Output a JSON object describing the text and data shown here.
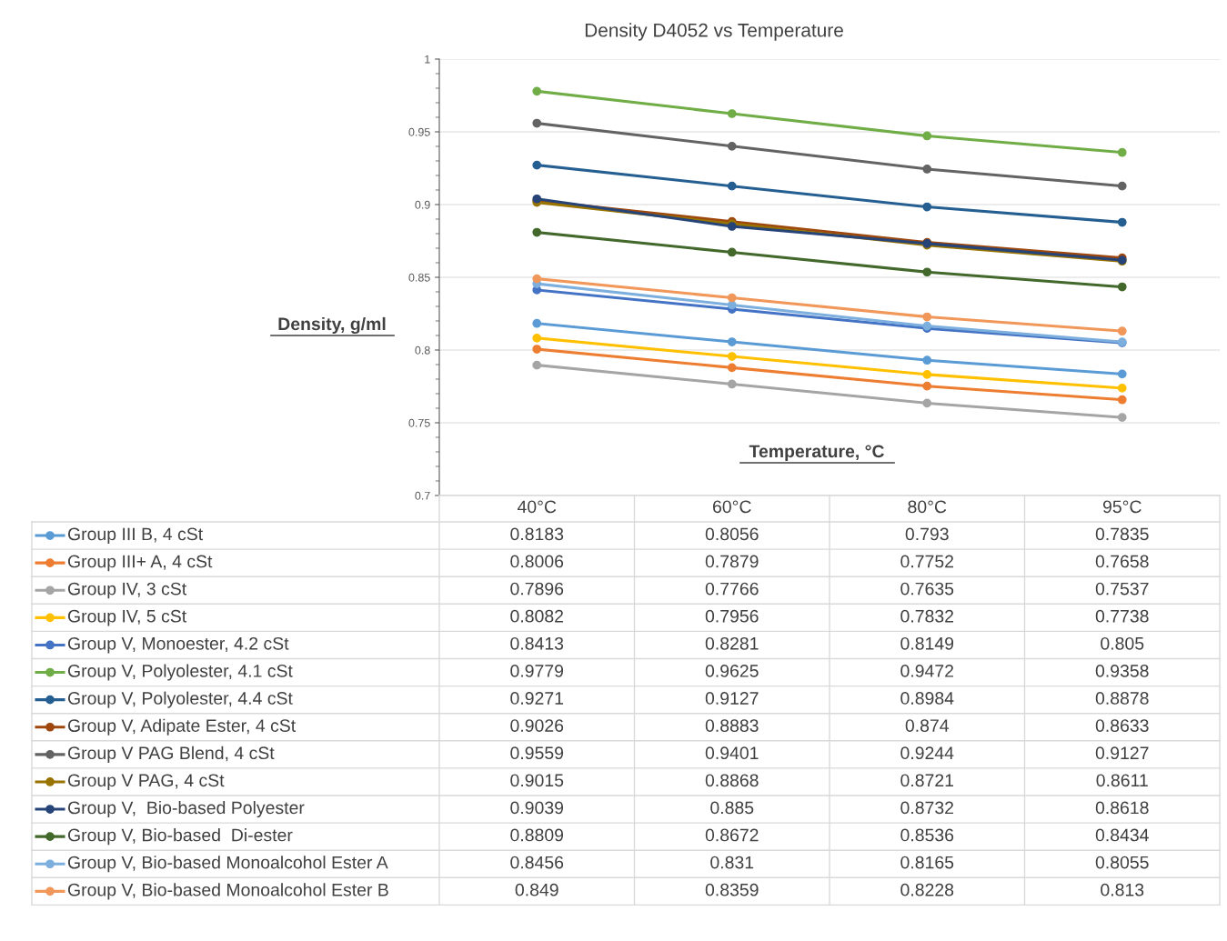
{
  "chart_data": {
    "type": "line",
    "title": "Density D4052 vs Temperature",
    "xlabel": "Temperature, °C",
    "ylabel": "Density, g/ml",
    "categories": [
      "40°C",
      "60°C",
      "80°C",
      "95°C"
    ],
    "ylim": [
      0.7,
      1
    ],
    "yticks": [
      0.7,
      0.75,
      0.8,
      0.85,
      0.9,
      0.95,
      1
    ],
    "grid": "y",
    "marker": "circle",
    "line_style": "solid",
    "data_labels": true,
    "legend": "bottom left",
    "series": [
      {
        "name": "Group III B, 4 cSt",
        "color": "#5b9bd5",
        "values": [
          0.8183,
          0.8056,
          0.793,
          0.7835
        ]
      },
      {
        "name": "Group III+ A, 4 cSt",
        "color": "#ed7d31",
        "values": [
          0.8006,
          0.7879,
          0.7752,
          0.7658
        ]
      },
      {
        "name": "Group IV, 3 cSt",
        "color": "#a5a5a5",
        "values": [
          0.7896,
          0.7766,
          0.7635,
          0.7537
        ]
      },
      {
        "name": "Group IV, 5 cSt",
        "color": "#ffc000",
        "values": [
          0.8082,
          0.7956,
          0.7832,
          0.7738
        ]
      },
      {
        "name": "Group V, Monoester, 4.2 cSt",
        "color": "#4472c4",
        "values": [
          0.8413,
          0.8281,
          0.8149,
          0.805
        ]
      },
      {
        "name": "Group V, Polyolester, 4.1 cSt",
        "color": "#70ad47",
        "values": [
          0.9779,
          0.9625,
          0.9472,
          0.9358
        ]
      },
      {
        "name": "Group V, Polyolester, 4.4 cSt",
        "color": "#255e91",
        "values": [
          0.9271,
          0.9127,
          0.8984,
          0.8878
        ]
      },
      {
        "name": "Group V, Adipate Ester, 4 cSt",
        "color": "#9e480e",
        "values": [
          0.9026,
          0.8883,
          0.874,
          0.8633
        ]
      },
      {
        "name": "Group V PAG Blend, 4 cSt",
        "color": "#636363",
        "values": [
          0.9559,
          0.9401,
          0.9244,
          0.9127
        ]
      },
      {
        "name": "Group V PAG, 4 cSt",
        "color": "#997300",
        "values": [
          0.9015,
          0.8868,
          0.8721,
          0.8611
        ]
      },
      {
        "name": "Group V,  Bio-based Polyester",
        "color": "#264478",
        "values": [
          0.9039,
          0.885,
          0.8732,
          0.8618
        ]
      },
      {
        "name": "Group V, Bio-based  Di-ester",
        "color": "#43682b",
        "values": [
          0.8809,
          0.8672,
          0.8536,
          0.8434
        ]
      },
      {
        "name": "Group V, Bio-based Monoalcohol Ester A",
        "color": "#7cafdd",
        "values": [
          0.8456,
          0.831,
          0.8165,
          0.8055
        ]
      },
      {
        "name": "Group V, Bio-based Monoalcohol Ester B",
        "color": "#f1975a",
        "values": [
          0.849,
          0.8359,
          0.8228,
          0.813
        ]
      }
    ]
  }
}
